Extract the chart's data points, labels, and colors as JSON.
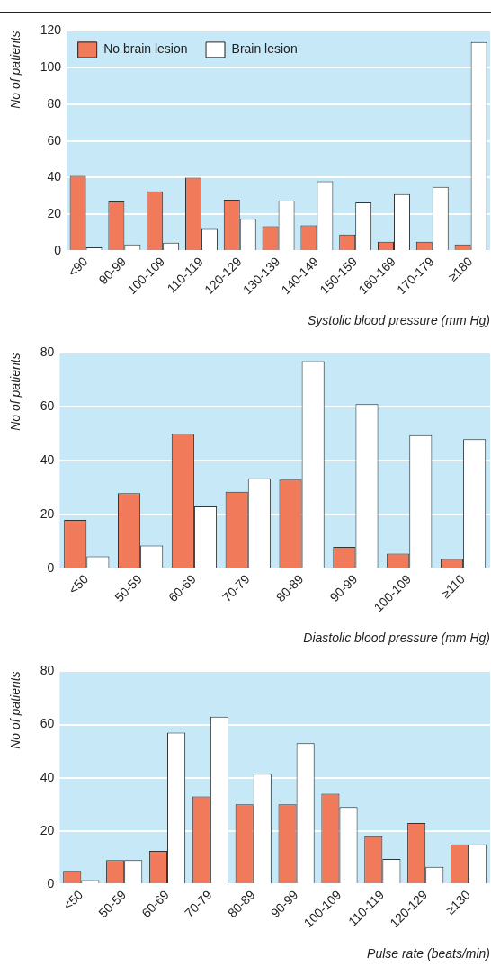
{
  "chart_data": [
    {
      "type": "bar",
      "xlabel": "Systolic blood pressure (mm Hg)",
      "ylabel": "No of patients",
      "categories": [
        "<90",
        "90-99",
        "100-109",
        "110-119",
        "120-129",
        "130-139",
        "140-149",
        "150-159",
        "160-169",
        "170-179",
        "≥180"
      ],
      "series": [
        {
          "name": "No brain lesion",
          "color": "#f07a5a",
          "values": [
            41,
            27,
            32.5,
            40,
            28,
            13.5,
            14,
            9,
            5,
            5,
            3.5
          ]
        },
        {
          "name": "Brain lesion",
          "color": "#ffffff",
          "values": [
            2,
            3.5,
            4.5,
            12,
            17.5,
            27.5,
            38,
            26.5,
            31,
            35,
            114
          ]
        }
      ],
      "ylim": [
        0,
        120
      ],
      "yticks": [
        0,
        20,
        40,
        60,
        80,
        100,
        120
      ],
      "grid": "y",
      "legend": "top left"
    },
    {
      "type": "bar",
      "xlabel": "Diastolic blood pressure (mm Hg)",
      "ylabel": "No of patients",
      "categories": [
        "<50",
        "50-59",
        "60-69",
        "70-79",
        "80-89",
        "90-99",
        "100-109",
        "≥110"
      ],
      "series": [
        {
          "color": "#f07a5a",
          "values": [
            18,
            28,
            50,
            28.5,
            33,
            8,
            5.5,
            3.5
          ]
        },
        {
          "color": "#ffffff",
          "values": [
            4.5,
            8.5,
            23,
            33.5,
            77,
            61,
            49.5,
            48
          ]
        }
      ],
      "ylim": [
        0,
        80
      ],
      "yticks": [
        0,
        20,
        40,
        60,
        80
      ],
      "grid": "y"
    },
    {
      "type": "bar",
      "xlabel": "Pulse rate (beats/min)",
      "ylabel": "No of patients",
      "categories": [
        "<50",
        "50-59",
        "60-69",
        "70-79",
        "80-89",
        "90-99",
        "100-109",
        "110-119",
        "120-129",
        "≥130"
      ],
      "series": [
        {
          "color": "#f07a5a",
          "values": [
            5,
            9,
            12.5,
            33,
            30,
            30,
            34,
            18,
            23,
            15
          ]
        },
        {
          "color": "#ffffff",
          "values": [
            1.5,
            9,
            57,
            63,
            41.5,
            53,
            29,
            9.5,
            6.5,
            15
          ]
        }
      ],
      "ylim": [
        0,
        80
      ],
      "yticks": [
        0,
        20,
        40,
        60,
        80
      ],
      "grid": "y"
    }
  ]
}
